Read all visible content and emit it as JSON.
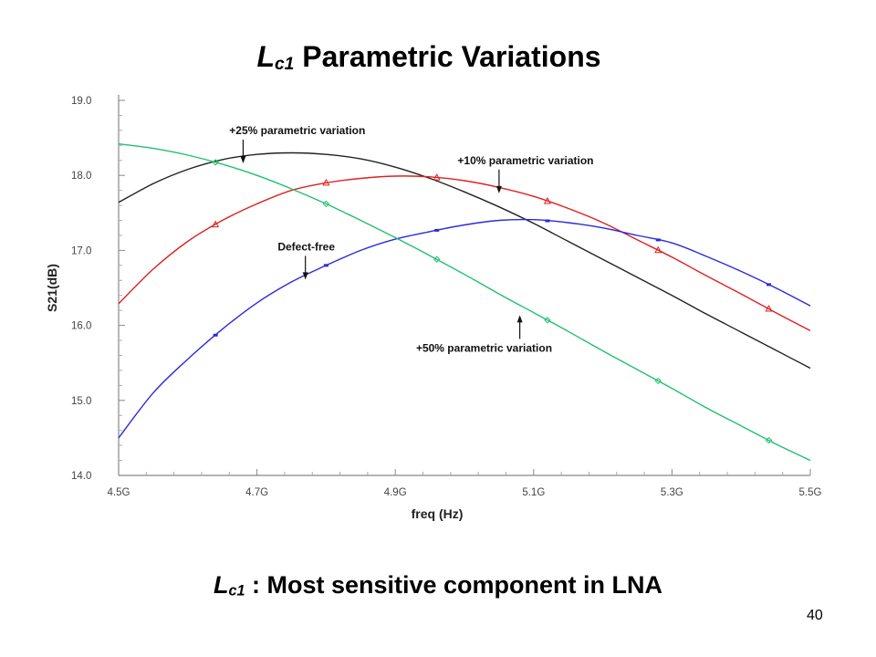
{
  "slide": {
    "title_symbol": "L",
    "title_subscript": "c1",
    "title_rest": " Parametric Variations",
    "subtitle_symbol": "L",
    "subtitle_subscript": "c1",
    "subtitle_rest": " : Most sensitive component in LNA",
    "page_number": "40"
  },
  "chart_data": {
    "type": "line",
    "xlabel": "freq (Hz)",
    "ylabel": "S21(dB)",
    "xlim": [
      4.5,
      5.5
    ],
    "ylim": [
      14.0,
      19.0
    ],
    "x_tick_values": [
      4.5,
      4.7,
      4.9,
      5.1,
      5.3,
      5.5
    ],
    "x_tick_labels": [
      "4.5G",
      "4.7G",
      "4.9G",
      "5.1G",
      "5.3G",
      "5.5G"
    ],
    "y_tick_values": [
      14,
      15,
      16,
      17,
      18,
      19
    ],
    "y_tick_labels": [
      "14.0",
      "15.0",
      "16.0",
      "17.0",
      "18.0",
      "19.0"
    ],
    "grid": false,
    "series": [
      {
        "color": "#222222",
        "x": [
          4.5,
          4.55,
          4.6,
          4.65,
          4.7,
          4.75,
          4.8,
          4.85,
          4.9,
          4.95,
          5.0,
          5.05,
          5.1,
          5.15,
          5.2,
          5.25,
          5.3,
          5.35,
          5.4,
          5.45,
          5.5
        ],
        "y": [
          17.64,
          17.89,
          18.08,
          18.21,
          18.28,
          18.3,
          18.28,
          18.22,
          18.11,
          17.96,
          17.78,
          17.58,
          17.36,
          17.12,
          16.88,
          16.64,
          16.4,
          16.15,
          15.91,
          15.67,
          15.43
        ]
      },
      {
        "color": "#e02020",
        "x": [
          4.5,
          4.55,
          4.6,
          4.65,
          4.7,
          4.75,
          4.8,
          4.85,
          4.9,
          4.95,
          5.0,
          5.05,
          5.1,
          5.15,
          5.2,
          5.25,
          5.3,
          5.35,
          5.4,
          5.45,
          5.5
        ],
        "y": [
          16.29,
          16.75,
          17.12,
          17.4,
          17.62,
          17.8,
          17.9,
          17.96,
          17.99,
          17.98,
          17.93,
          17.84,
          17.72,
          17.56,
          17.37,
          17.14,
          16.91,
          16.66,
          16.42,
          16.17,
          15.93
        ],
        "markers_x": [
          4.64,
          4.8,
          4.96,
          5.12,
          5.28,
          5.44
        ]
      },
      {
        "color": "#2a2ae0",
        "x": [
          4.5,
          4.55,
          4.6,
          4.65,
          4.7,
          4.75,
          4.8,
          4.85,
          4.9,
          4.95,
          5.0,
          5.05,
          5.1,
          5.15,
          5.2,
          5.25,
          5.3,
          5.35,
          5.4,
          5.45,
          5.5
        ],
        "y": [
          14.5,
          15.1,
          15.55,
          15.95,
          16.3,
          16.58,
          16.8,
          17.0,
          17.15,
          17.25,
          17.34,
          17.4,
          17.41,
          17.37,
          17.3,
          17.2,
          17.1,
          16.92,
          16.72,
          16.5,
          16.26
        ],
        "markers_x": [
          4.64,
          4.8,
          4.96,
          5.12,
          5.28,
          5.44
        ]
      },
      {
        "color": "#22c070",
        "x": [
          4.5,
          4.55,
          4.6,
          4.65,
          4.7,
          4.75,
          4.8,
          4.85,
          4.9,
          4.95,
          5.0,
          5.05,
          5.1,
          5.15,
          5.2,
          5.25,
          5.3,
          5.35,
          5.4,
          5.45,
          5.5
        ],
        "y": [
          18.42,
          18.36,
          18.27,
          18.15,
          18.0,
          17.82,
          17.62,
          17.4,
          17.17,
          16.93,
          16.68,
          16.42,
          16.17,
          15.92,
          15.66,
          15.41,
          15.16,
          14.9,
          14.66,
          14.42,
          14.2
        ],
        "markers_x": [
          4.64,
          4.8,
          4.96,
          5.12,
          5.28,
          5.44
        ]
      }
    ],
    "annotations": [
      {
        "bold": "+25%",
        "rest": " parametric variation",
        "arrow_x": 4.68,
        "arrow_dir": "down",
        "tx": 4.66,
        "ty": 18.55
      },
      {
        "bold": "+10% parametric variation",
        "rest": "",
        "arrow_x": 5.05,
        "arrow_dir": "down",
        "tx": 4.99,
        "ty": 18.15
      },
      {
        "bold": "Defect-free",
        "rest": "",
        "arrow_x": 4.77,
        "arrow_dir": "down",
        "tx": 4.73,
        "ty": 17.0
      },
      {
        "bold": "+50%",
        "rest": " parametric variation",
        "arrow_x": 5.08,
        "arrow_dir": "up",
        "tx": 4.93,
        "ty": 15.65
      }
    ]
  }
}
